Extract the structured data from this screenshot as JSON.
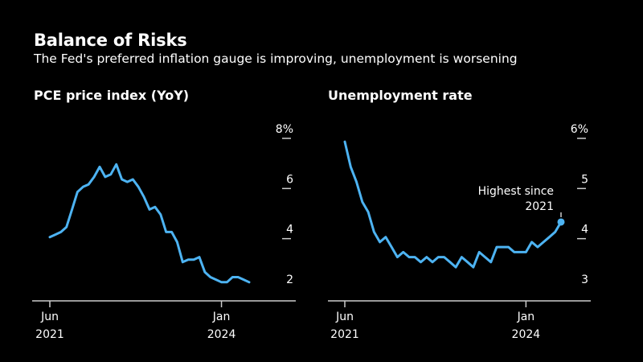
{
  "header": {
    "title": "Balance of Risks",
    "subtitle": "The Fed's preferred inflation gauge is improving, unemployment is worsening"
  },
  "colors": {
    "background": "#000000",
    "line": "#4db3f2",
    "text": "#ffffff",
    "axis": "#cccccc"
  },
  "chart_data": [
    {
      "type": "line",
      "title": "PCE price index (YoY)",
      "xlabel": "",
      "ylabel": "",
      "ylim": [
        2,
        8
      ],
      "y_ticks": [
        "8%",
        "6",
        "4",
        "2"
      ],
      "x_ticks": [
        {
          "label": [
            "Jun",
            "2021"
          ],
          "x": "2021-06"
        },
        {
          "label": [
            "Jan",
            "2024"
          ],
          "x": "2024-01"
        }
      ],
      "xlim": [
        "2021-06",
        "2024-08"
      ],
      "series": [
        {
          "x": [
            "2021-06",
            "2021-07",
            "2021-08",
            "2021-09",
            "2021-10",
            "2021-11",
            "2021-12",
            "2022-01",
            "2022-02",
            "2022-03",
            "2022-04",
            "2022-05",
            "2022-06",
            "2022-07",
            "2022-08",
            "2022-09",
            "2022-10",
            "2022-11",
            "2022-12",
            "2023-01",
            "2023-02",
            "2023-03",
            "2023-04",
            "2023-05",
            "2023-06",
            "2023-07",
            "2023-08",
            "2023-09",
            "2023-10",
            "2023-11",
            "2023-12",
            "2024-01",
            "2024-02",
            "2024-03",
            "2024-04",
            "2024-05",
            "2024-06"
          ],
          "values": [
            4.0,
            4.1,
            4.2,
            4.4,
            5.1,
            5.8,
            6.0,
            6.1,
            6.4,
            6.8,
            6.4,
            6.5,
            6.9,
            6.3,
            6.2,
            6.3,
            6.0,
            5.6,
            5.1,
            5.2,
            4.9,
            4.2,
            4.2,
            3.8,
            3.0,
            3.1,
            3.1,
            3.2,
            2.6,
            2.4,
            2.3,
            2.2,
            2.2,
            2.4,
            2.4,
            2.3,
            2.2
          ]
        }
      ]
    },
    {
      "type": "line",
      "title": "Unemployment rate",
      "xlabel": "",
      "ylabel": "",
      "ylim": [
        3,
        6
      ],
      "y_ticks": [
        "6%",
        "5",
        "4",
        "3"
      ],
      "x_ticks": [
        {
          "label": [
            "Jun",
            "2021"
          ],
          "x": "2021-06"
        },
        {
          "label": [
            "Jan",
            "2024"
          ],
          "x": "2024-01"
        }
      ],
      "xlim": [
        "2021-06",
        "2024-08"
      ],
      "annotations": [
        {
          "text": [
            "Highest since",
            "2021"
          ],
          "x": "2024-07",
          "y": 4.1
        }
      ],
      "series": [
        {
          "x": [
            "2021-06",
            "2021-07",
            "2021-08",
            "2021-09",
            "2021-10",
            "2021-11",
            "2021-12",
            "2022-01",
            "2022-02",
            "2022-03",
            "2022-04",
            "2022-05",
            "2022-06",
            "2022-07",
            "2022-08",
            "2022-09",
            "2022-10",
            "2022-11",
            "2022-12",
            "2023-01",
            "2023-02",
            "2023-03",
            "2023-04",
            "2023-05",
            "2023-06",
            "2023-07",
            "2023-08",
            "2023-09",
            "2023-10",
            "2023-11",
            "2023-12",
            "2024-01",
            "2024-02",
            "2024-03",
            "2024-04",
            "2024-05",
            "2024-06",
            "2024-07"
          ],
          "values": [
            5.9,
            5.4,
            5.1,
            4.7,
            4.5,
            4.1,
            3.9,
            4.0,
            3.8,
            3.6,
            3.7,
            3.6,
            3.6,
            3.5,
            3.6,
            3.5,
            3.6,
            3.6,
            3.5,
            3.4,
            3.6,
            3.5,
            3.4,
            3.7,
            3.6,
            3.5,
            3.8,
            3.8,
            3.8,
            3.7,
            3.7,
            3.7,
            3.9,
            3.8,
            3.9,
            4.0,
            4.1,
            4.3
          ]
        }
      ]
    }
  ]
}
